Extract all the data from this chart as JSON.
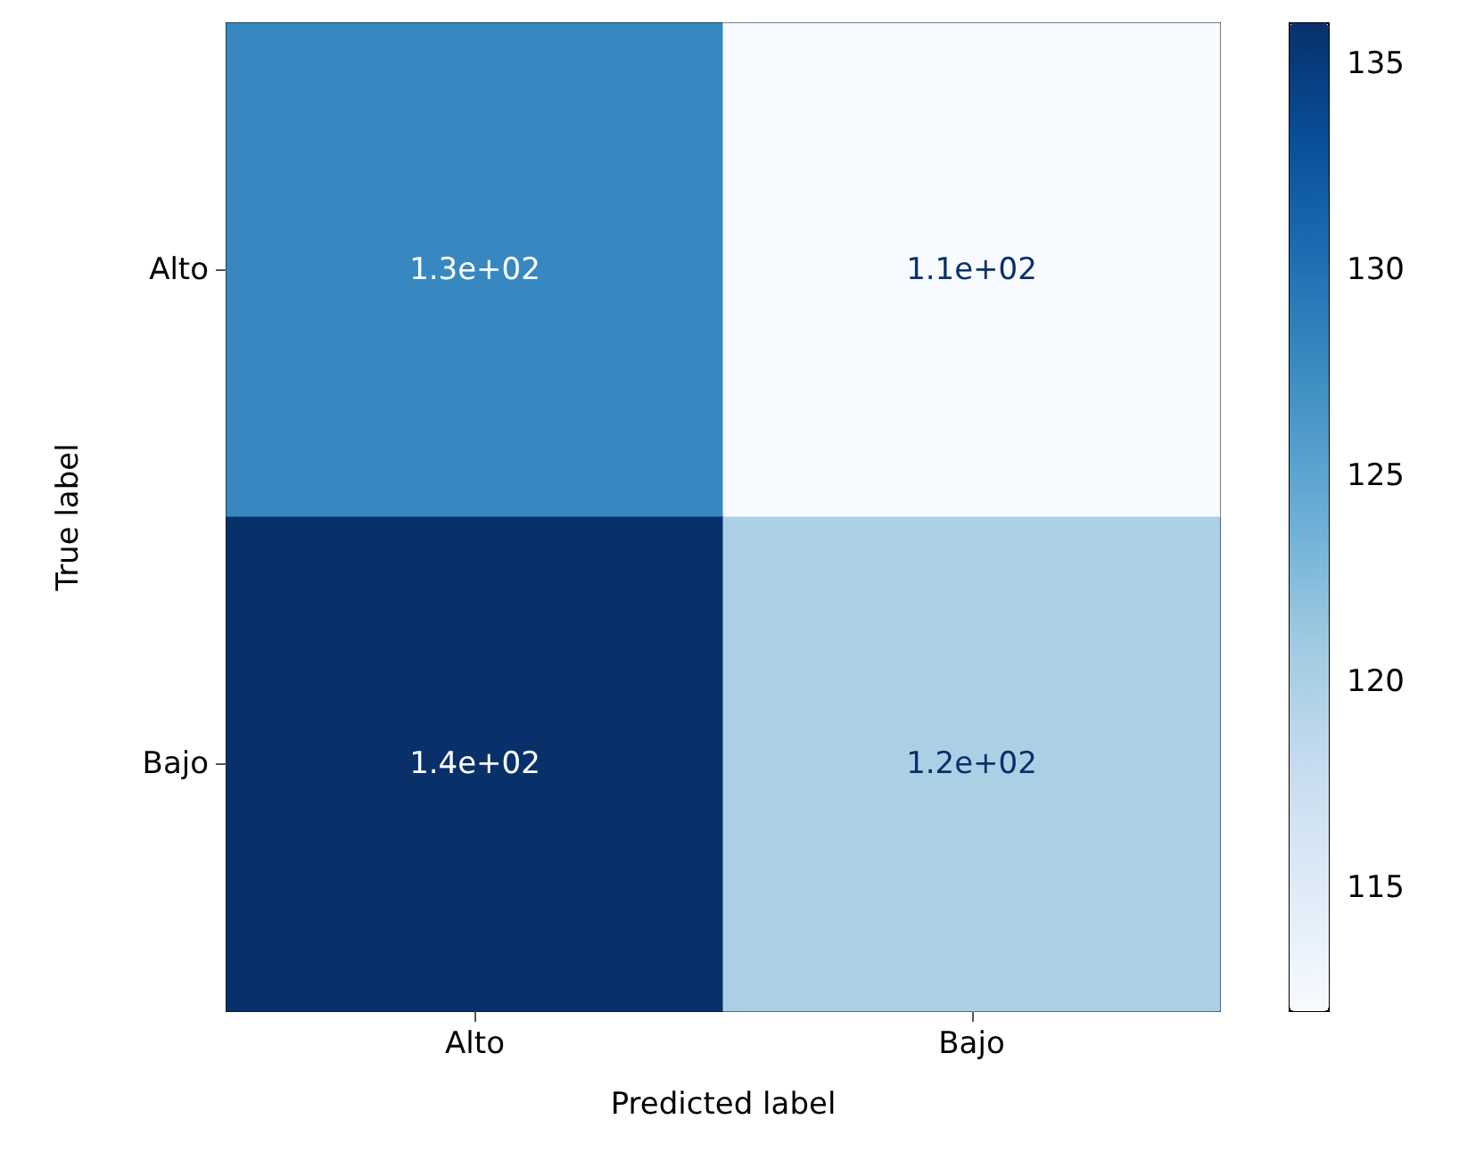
{
  "chart_data": {
    "type": "heatmap",
    "xlabel": "Predicted label",
    "ylabel": "True label",
    "categories": [
      "Alto",
      "Bajo"
    ],
    "y_categories": [
      "Alto",
      "Bajo"
    ],
    "cells": [
      [
        128,
        112
      ],
      [
        136,
        120
      ]
    ],
    "cell_labels": [
      [
        "1.3e+02",
        "1.1e+02"
      ],
      [
        "1.4e+02",
        "1.2e+02"
      ]
    ],
    "clim": [
      112,
      136
    ],
    "cticks": [
      115,
      120,
      125,
      130,
      135
    ]
  }
}
